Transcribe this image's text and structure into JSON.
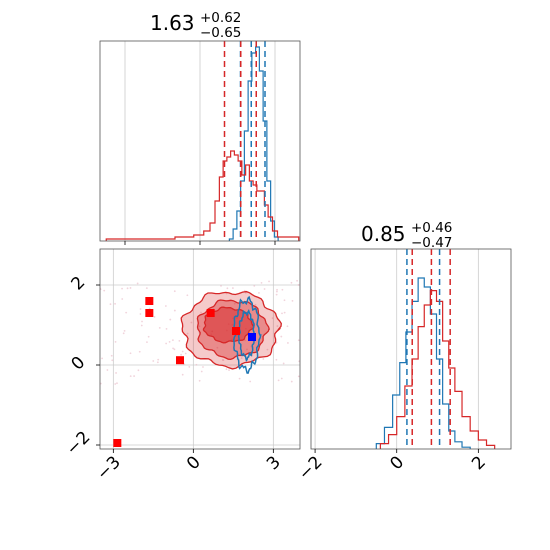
{
  "colors": {
    "series_a": "#1f77b4",
    "series_b": "#d62728",
    "markers_red": "#ff0000",
    "marker_blue": "#0000ff",
    "grid": "#cccccc",
    "frame": "#555555"
  },
  "chart_data": [
    {
      "type": "histogram",
      "panel": "top-left",
      "title": {
        "value": "1.63",
        "plus": "+0.62",
        "minus": "−0.65"
      },
      "xlim": [
        -4.0,
        4.0
      ],
      "grid": true,
      "quantile_lines": {
        "series_a": [
          1.62,
          2.05,
          2.6
        ],
        "series_b": [
          0.98,
          1.63,
          2.25
        ]
      },
      "series": [
        {
          "color_key": "series_a",
          "x": [
            1.25,
            1.4,
            1.55,
            1.7,
            1.85,
            2.0,
            2.15,
            2.3,
            2.45,
            2.6,
            2.75,
            2.9,
            3.05
          ],
          "values": [
            0.01,
            0.06,
            0.15,
            0.3,
            0.55,
            0.8,
            0.94,
            0.97,
            0.85,
            0.6,
            0.3,
            0.1,
            0.02
          ]
        },
        {
          "color_key": "series_b",
          "x": [
            -3.0,
            -1.5,
            -0.5,
            0.0,
            0.3,
            0.5,
            0.7,
            0.85,
            1.0,
            1.15,
            1.3,
            1.45,
            1.6,
            1.75,
            1.9,
            2.05,
            2.2,
            2.35,
            2.5,
            2.65,
            2.8,
            3.0,
            3.2
          ],
          "values": [
            0.01,
            0.01,
            0.02,
            0.03,
            0.05,
            0.09,
            0.2,
            0.32,
            0.4,
            0.42,
            0.45,
            0.43,
            0.4,
            0.33,
            0.38,
            0.3,
            0.28,
            0.25,
            0.25,
            0.18,
            0.12,
            0.05,
            0.02
          ]
        }
      ]
    },
    {
      "type": "contour",
      "panel": "bottom-left",
      "xlim": [
        -3.5,
        4.0
      ],
      "ylim": [
        -2.1,
        2.9
      ],
      "x_ticks": [
        "−3",
        "0",
        "3"
      ],
      "y_ticks": [
        "−2",
        "0",
        "2"
      ],
      "grid": true,
      "series_b_contours": [
        {
          "center": [
            1.4,
            0.9
          ],
          "radius": [
            1.8,
            1.95
          ],
          "fill_opacity": 0.45
        },
        {
          "center": [
            1.45,
            0.9
          ],
          "radius": [
            1.3,
            1.5
          ],
          "fill_opacity": 0.7
        },
        {
          "center": [
            1.3,
            1.0
          ],
          "radius": [
            0.9,
            0.9
          ],
          "fill_opacity": 0.95
        }
      ],
      "series_a_contours": [
        {
          "center": [
            2.0,
            0.75
          ],
          "radius": [
            0.75,
            1.3
          ]
        },
        {
          "center": [
            2.0,
            0.75
          ],
          "radius": [
            0.45,
            0.85
          ]
        }
      ],
      "red_points": [
        {
          "x": -1.65,
          "y": 1.6
        },
        {
          "x": -1.65,
          "y": 1.3
        },
        {
          "x": -0.5,
          "y": 0.12
        },
        {
          "x": 0.65,
          "y": 1.3
        },
        {
          "x": 1.6,
          "y": 0.85
        },
        {
          "x": -2.85,
          "y": -1.95
        }
      ],
      "blue_points": [
        {
          "x": 2.2,
          "y": 0.7
        }
      ]
    },
    {
      "type": "histogram",
      "panel": "bottom-right",
      "title": {
        "value": "0.85",
        "plus": "+0.46",
        "minus": "−0.47"
      },
      "xlim": [
        -2.1,
        2.8
      ],
      "x_ticks": [
        "−2",
        "0",
        "2"
      ],
      "grid": true,
      "quantile_lines": {
        "series_a": [
          0.25,
          1.05
        ],
        "series_b": [
          0.38,
          0.85,
          1.31
        ]
      },
      "series": [
        {
          "color_key": "series_a",
          "x": [
            -0.4,
            -0.2,
            0.0,
            0.15,
            0.3,
            0.45,
            0.6,
            0.75,
            0.9,
            1.05,
            1.2,
            1.35,
            1.5,
            1.7
          ],
          "values": [
            0.03,
            0.12,
            0.3,
            0.48,
            0.65,
            0.82,
            0.95,
            0.9,
            0.75,
            0.5,
            0.25,
            0.1,
            0.04,
            0.01
          ]
        },
        {
          "color_key": "series_b",
          "x": [
            -0.3,
            -0.1,
            0.1,
            0.3,
            0.45,
            0.6,
            0.75,
            0.9,
            1.05,
            1.2,
            1.35,
            1.5,
            1.7,
            1.9,
            2.1,
            2.3
          ],
          "values": [
            0.03,
            0.08,
            0.18,
            0.35,
            0.5,
            0.68,
            0.8,
            0.88,
            0.82,
            0.6,
            0.45,
            0.32,
            0.18,
            0.1,
            0.05,
            0.02
          ]
        }
      ]
    }
  ]
}
